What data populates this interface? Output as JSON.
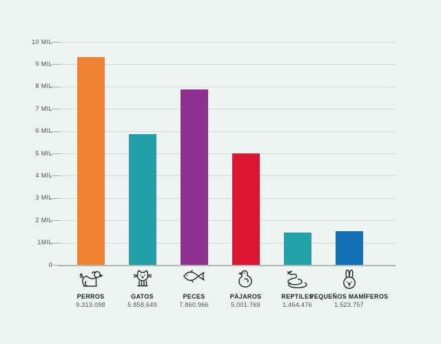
{
  "page": {
    "background_color": "#edf4f2",
    "title": ""
  },
  "chart_data": {
    "type": "bar",
    "title": "",
    "xlabel": "",
    "ylabel": "",
    "grid": true,
    "legend": false,
    "categories": [
      "PERROS",
      "GATOS",
      "PECES",
      "PÁJAROS",
      "REPTILES",
      "PEQUEÑOS MAMÍFEROS"
    ],
    "values": [
      9313098,
      5858649,
      7860966,
      5001769,
      1464476,
      1523757
    ],
    "value_labels": [
      "9.313.098",
      "5.858.649",
      "7.860.966",
      "5.001.769",
      "1.464.476",
      "1.523.757"
    ],
    "bar_colors": [
      "#ef8331",
      "#229fa9",
      "#8e3190",
      "#dc1531",
      "#24a1a8",
      "#1471b8"
    ],
    "icons": [
      "dog-icon",
      "cat-icon",
      "fish-icon",
      "bird-icon",
      "snake-icon",
      "rabbit-icon"
    ],
    "y_axis": {
      "min": 0,
      "max": 10000000,
      "tick_labels_top_down": [
        "10 MIL",
        "9 MIL",
        "8 MIL",
        "7 MIL",
        "6 MIL",
        "5 MIL",
        "4 MIL",
        "3 MIL",
        "2 MIL",
        "1MIL",
        "0"
      ]
    }
  }
}
